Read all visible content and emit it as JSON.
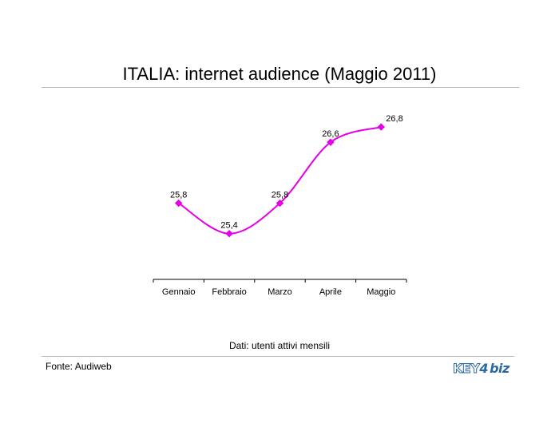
{
  "page": {
    "title": "ITALIA: internet audience (Maggio 2011)",
    "subtitle": "Dati: utenti attivi mensili",
    "source": "Fonte: Audiweb",
    "logo": {
      "part1": "KEY",
      "part2": "4",
      "part3": "biz"
    }
  },
  "colors": {
    "series": "#e600e6",
    "axis": "#000000",
    "rule": "#b8b8b8",
    "logo": "#2c6aa6"
  },
  "chart_data": {
    "type": "line",
    "title": "",
    "categories": [
      "Gennaio",
      "Febbraio",
      "Marzo",
      "Aprile",
      "Maggio"
    ],
    "series": [
      {
        "values": [
          25.8,
          25.4,
          25.8,
          26.6,
          26.8
        ],
        "labels": [
          "25,8",
          "25,4",
          "25,8",
          "26,6",
          "26,8"
        ]
      }
    ],
    "ylim": [
      24.8,
      27.0
    ],
    "grid": false,
    "legend": "none",
    "smooth": true,
    "marker": "diamond"
  }
}
